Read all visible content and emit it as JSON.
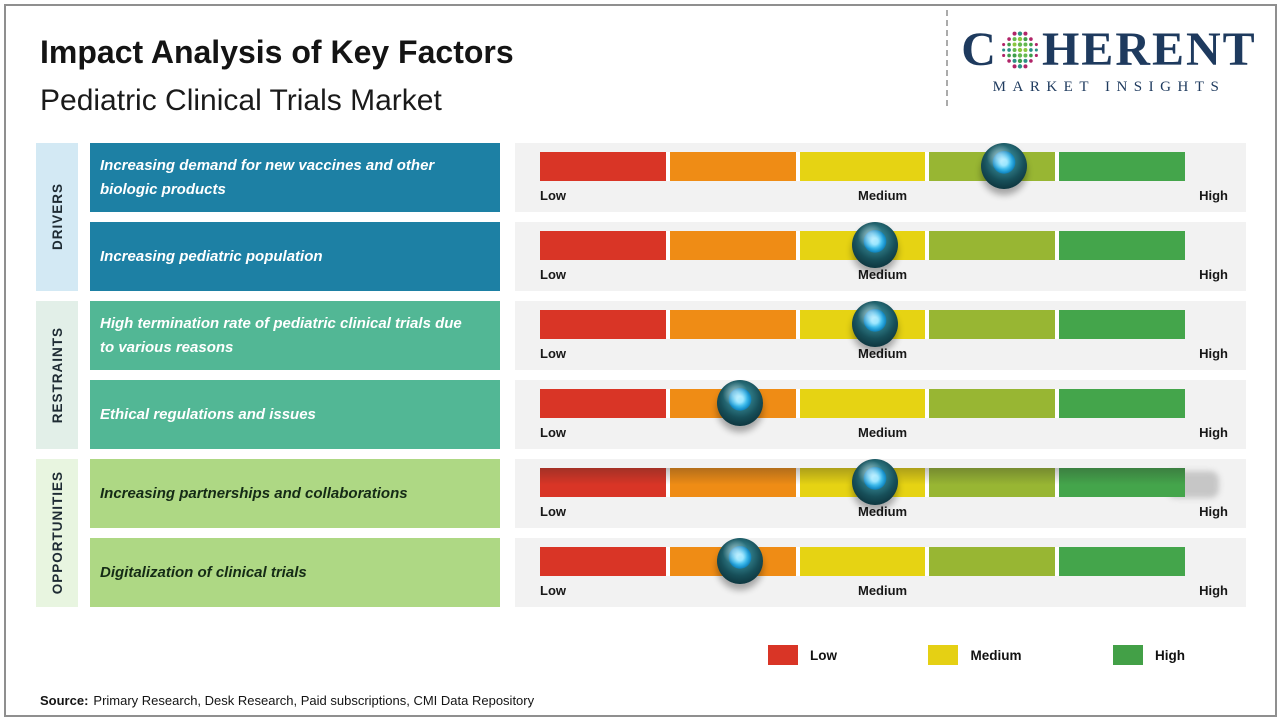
{
  "header": {
    "title": "Impact Analysis of Key Factors",
    "subtitle": "Pediatric Clinical Trials Market"
  },
  "logo": {
    "brand_prefix": "C",
    "brand_suffix": "HERENT",
    "tagline": "MARKET INSIGHTS",
    "globe_icon": "dotted-globe",
    "brand_color": "#1e3a5e"
  },
  "chart_data": {
    "type": "impact-scale",
    "title": "Impact Analysis of Key Factors",
    "subtitle": "Pediatric Clinical Trials Market",
    "scale": {
      "low": "Low",
      "medium": "Medium",
      "high": "High",
      "range": [
        0,
        100
      ],
      "segment_colors": [
        "#d93526",
        "#ef8c15",
        "#e6d313",
        "#98b633",
        "#44a54b"
      ]
    },
    "sections": [
      {
        "label": "DRIVERS"
      },
      {
        "label": "RESTRAINTS"
      },
      {
        "label": "OPPORTUNITIES"
      }
    ],
    "factors": [
      {
        "section": "DRIVERS",
        "text": "Increasing demand for new vaccines and other biologic products",
        "impact_percent": 72,
        "impact_level": "Medium-High"
      },
      {
        "section": "DRIVERS",
        "text": "Increasing pediatric population",
        "impact_percent": 52,
        "impact_level": "Medium"
      },
      {
        "section": "RESTRAINTS",
        "text": "High termination rate of pediatric clinical trials due to various reasons",
        "impact_percent": 52,
        "impact_level": "Medium"
      },
      {
        "section": "RESTRAINTS",
        "text": "Ethical regulations and issues",
        "impact_percent": 31,
        "impact_level": "Low-Medium"
      },
      {
        "section": "OPPORTUNITIES",
        "text": "Increasing partnerships and collaborations",
        "impact_percent": 52,
        "impact_level": "Medium"
      },
      {
        "section": "OPPORTUNITIES",
        "text": "Digitalization of clinical trials",
        "impact_percent": 31,
        "impact_level": "Low-Medium"
      }
    ]
  },
  "legend": [
    {
      "label": "Low",
      "color": "#d93526"
    },
    {
      "label": "Medium",
      "color": "#e5d014"
    },
    {
      "label": "High",
      "color": "#43a047"
    }
  ],
  "source": {
    "label": "Source:",
    "text": "Primary Research, Desk Research, Paid subscriptions, CMI Data Repository"
  },
  "colors": {
    "driver_box": "#1d80a4",
    "restraint_box": "#52b795",
    "opportunity_box": "#aed884",
    "driver_strip": "#d3e9f4",
    "restraint_strip": "#e2efe8",
    "opportunity_strip": "#e8f5e0",
    "panel_background": "#f2f2f2",
    "marker_outer": "#123f48",
    "marker_core": "#2aa6e0",
    "brand_navy": "#1e3a5e"
  }
}
